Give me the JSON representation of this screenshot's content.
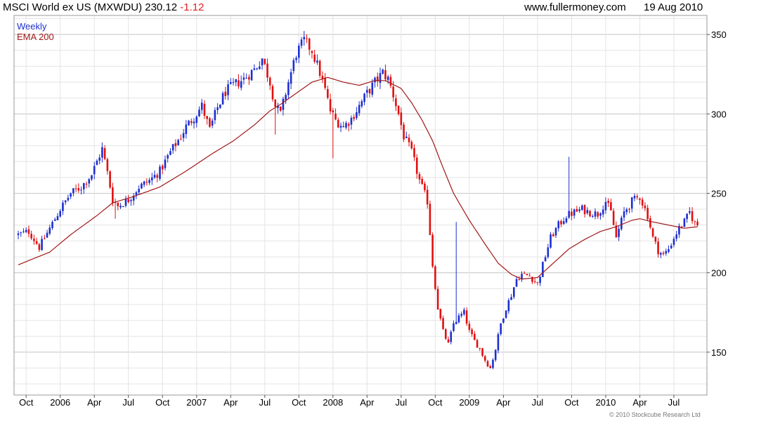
{
  "header": {
    "title": "MSCI World ex US (MXWDU) 230.12",
    "change": "-1.12",
    "website": "www.fullermoney.com",
    "date": "19 Aug 2010"
  },
  "copyright": "© 2010 Stockcube Research Ltd",
  "colors": {
    "up_candle": "#1c2fd0",
    "down_candle": "#e01010",
    "ema_line": "#a01818",
    "grid": "#d8d8d8"
  },
  "chart_data": {
    "type": "candlestick",
    "title": "MSCI World ex US (MXWDU)",
    "legend": [
      "Weekly",
      "EMA 200"
    ],
    "legend_position": "top-left",
    "yaxis_side": "right",
    "ylim": [
      123,
      362
    ],
    "yticks": [
      150,
      200,
      250,
      300,
      350
    ],
    "grid": true,
    "x_ticks": [
      {
        "label": "Oct",
        "w": 3
      },
      {
        "label": "2006",
        "w": 16
      },
      {
        "label": "Apr",
        "w": 29
      },
      {
        "label": "Jul",
        "w": 42
      },
      {
        "label": "Oct",
        "w": 55
      },
      {
        "label": "2007",
        "w": 68
      },
      {
        "label": "Apr",
        "w": 81
      },
      {
        "label": "Jul",
        "w": 94
      },
      {
        "label": "Oct",
        "w": 107
      },
      {
        "label": "2008",
        "w": 120
      },
      {
        "label": "Apr",
        "w": 133
      },
      {
        "label": "Jul",
        "w": 146
      },
      {
        "label": "Oct",
        "w": 159
      },
      {
        "label": "2009",
        "w": 172
      },
      {
        "label": "Apr",
        "w": 185
      },
      {
        "label": "Jul",
        "w": 198
      },
      {
        "label": "Oct",
        "w": 211
      },
      {
        "label": "2010",
        "w": 224
      },
      {
        "label": "Apr",
        "w": 237
      },
      {
        "label": "Jul",
        "w": 250
      }
    ],
    "weeks_total": 262,
    "close_anchors": [
      [
        0,
        224
      ],
      [
        4,
        226
      ],
      [
        8,
        216
      ],
      [
        12,
        228
      ],
      [
        16,
        240
      ],
      [
        20,
        250
      ],
      [
        24,
        254
      ],
      [
        28,
        262
      ],
      [
        32,
        278
      ],
      [
        34,
        263
      ],
      [
        36,
        246
      ],
      [
        38,
        242
      ],
      [
        42,
        246
      ],
      [
        46,
        254
      ],
      [
        50,
        258
      ],
      [
        54,
        264
      ],
      [
        58,
        276
      ],
      [
        62,
        286
      ],
      [
        64,
        292
      ],
      [
        67,
        298
      ],
      [
        70,
        305
      ],
      [
        73,
        290
      ],
      [
        76,
        304
      ],
      [
        79,
        314
      ],
      [
        82,
        318
      ],
      [
        86,
        322
      ],
      [
        90,
        328
      ],
      [
        93,
        335
      ],
      [
        96,
        320
      ],
      [
        98,
        305
      ],
      [
        100,
        300
      ],
      [
        103,
        320
      ],
      [
        106,
        338
      ],
      [
        109,
        346
      ],
      [
        112,
        340
      ],
      [
        115,
        326
      ],
      [
        117,
        315
      ],
      [
        119,
        302
      ],
      [
        121,
        296
      ],
      [
        124,
        292
      ],
      [
        127,
        297
      ],
      [
        130,
        305
      ],
      [
        133,
        313
      ],
      [
        136,
        320
      ],
      [
        139,
        326
      ],
      [
        141,
        322
      ],
      [
        143,
        312
      ],
      [
        145,
        300
      ],
      [
        147,
        286
      ],
      [
        150,
        276
      ],
      [
        153,
        258
      ],
      [
        156,
        245
      ],
      [
        158,
        205
      ],
      [
        160,
        178
      ],
      [
        162,
        163
      ],
      [
        164,
        155
      ],
      [
        166,
        168
      ],
      [
        168,
        172
      ],
      [
        170,
        175
      ],
      [
        172,
        163
      ],
      [
        174,
        157
      ],
      [
        176,
        152
      ],
      [
        178,
        145
      ],
      [
        180,
        140
      ],
      [
        182,
        152
      ],
      [
        184,
        168
      ],
      [
        186,
        178
      ],
      [
        188,
        186
      ],
      [
        190,
        196
      ],
      [
        192,
        199
      ],
      [
        195,
        198
      ],
      [
        198,
        193
      ],
      [
        200,
        205
      ],
      [
        203,
        222
      ],
      [
        206,
        230
      ],
      [
        209,
        236
      ],
      [
        212,
        238
      ],
      [
        215,
        240
      ],
      [
        218,
        238
      ],
      [
        221,
        237
      ],
      [
        224,
        245
      ],
      [
        226,
        238
      ],
      [
        228,
        222
      ],
      [
        231,
        238
      ],
      [
        234,
        245
      ],
      [
        237,
        248
      ],
      [
        240,
        236
      ],
      [
        242,
        222
      ],
      [
        244,
        214
      ],
      [
        246,
        211
      ],
      [
        248,
        215
      ],
      [
        250,
        222
      ],
      [
        252,
        228
      ],
      [
        254,
        232
      ],
      [
        256,
        238
      ],
      [
        258,
        231
      ],
      [
        259,
        230.12
      ]
    ],
    "spikes": [
      {
        "week": 120,
        "low": 272
      },
      {
        "week": 167,
        "high": 232
      },
      {
        "week": 210,
        "high": 273
      },
      {
        "week": 32,
        "high": 282
      },
      {
        "week": 37,
        "low": 234
      },
      {
        "week": 98,
        "low": 287
      }
    ],
    "ema_anchors": [
      [
        0,
        205
      ],
      [
        6,
        209
      ],
      [
        12,
        213
      ],
      [
        20,
        224
      ],
      [
        30,
        236
      ],
      [
        36,
        244
      ],
      [
        44,
        248
      ],
      [
        54,
        254
      ],
      [
        64,
        264
      ],
      [
        74,
        275
      ],
      [
        82,
        283
      ],
      [
        90,
        293
      ],
      [
        96,
        302
      ],
      [
        100,
        306
      ],
      [
        106,
        313
      ],
      [
        112,
        320
      ],
      [
        118,
        323
      ],
      [
        124,
        320
      ],
      [
        130,
        318
      ],
      [
        136,
        321
      ],
      [
        140,
        321
      ],
      [
        146,
        316
      ],
      [
        150,
        307
      ],
      [
        154,
        296
      ],
      [
        158,
        283
      ],
      [
        162,
        266
      ],
      [
        166,
        250
      ],
      [
        172,
        233
      ],
      [
        178,
        218
      ],
      [
        183,
        206
      ],
      [
        188,
        199
      ],
      [
        192,
        196
      ],
      [
        198,
        197
      ],
      [
        204,
        206
      ],
      [
        210,
        215
      ],
      [
        216,
        221
      ],
      [
        222,
        226
      ],
      [
        228,
        229
      ],
      [
        234,
        233
      ],
      [
        237,
        234
      ],
      [
        242,
        232
      ],
      [
        248,
        230
      ],
      [
        254,
        228
      ],
      [
        259,
        229
      ]
    ]
  }
}
